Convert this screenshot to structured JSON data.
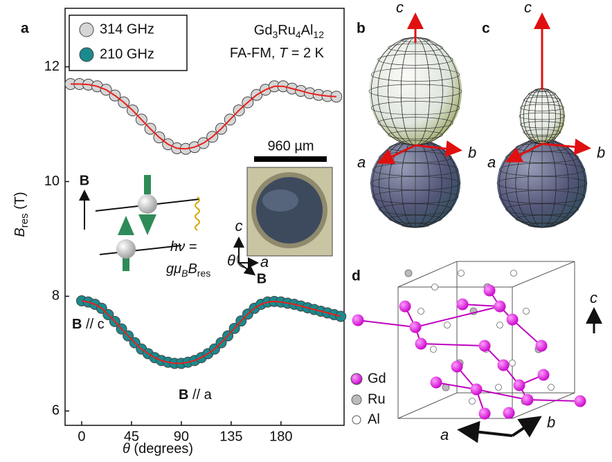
{
  "chart_data": {
    "type": "scatter",
    "panel_label": "a",
    "xlabel": {
      "symbol": "θ",
      "text": "(degrees)"
    },
    "ylabel": {
      "symbol": "B",
      "sub": "res",
      "unit": "(T)"
    },
    "xlim": [
      -15,
      237
    ],
    "ylim": [
      5.75,
      13.02
    ],
    "xticks": [
      0,
      45,
      90,
      135,
      180
    ],
    "yticks": [
      6,
      8,
      10,
      12
    ],
    "fit_color": "#e8201c",
    "legend": "upper left",
    "series": [
      {
        "name": "314 GHz",
        "color": "#d6d6d6",
        "x": [
          -10,
          -2,
          6,
          14,
          22,
          30,
          38,
          46,
          54,
          62,
          70,
          78,
          86,
          94,
          102,
          110,
          118,
          126,
          134,
          142,
          150,
          158,
          166,
          174,
          182,
          190,
          198,
          206,
          214,
          222,
          230
        ],
        "values": [
          11.7,
          11.7,
          11.69,
          11.66,
          11.6,
          11.5,
          11.38,
          11.24,
          11.08,
          10.92,
          10.77,
          10.65,
          10.58,
          10.57,
          10.6,
          10.67,
          10.78,
          10.92,
          11.08,
          11.24,
          11.38,
          11.51,
          11.6,
          11.66,
          11.66,
          11.62,
          11.58,
          11.54,
          11.51,
          11.49,
          11.48
        ]
      },
      {
        "name": "210 GHz",
        "color": "#1a8a8e",
        "x": [
          0,
          6,
          12,
          18,
          24,
          30,
          36,
          42,
          48,
          54,
          60,
          66,
          72,
          78,
          84,
          90,
          96,
          102,
          108,
          114,
          120,
          126,
          132,
          138,
          144,
          150,
          156,
          162,
          168,
          174,
          180,
          186,
          192,
          198,
          204,
          210,
          216,
          222,
          228,
          234
        ],
        "values": [
          7.92,
          7.9,
          7.86,
          7.79,
          7.68,
          7.56,
          7.43,
          7.31,
          7.19,
          7.08,
          7.0,
          6.93,
          6.88,
          6.85,
          6.83,
          6.83,
          6.85,
          6.88,
          6.93,
          7.0,
          7.08,
          7.19,
          7.31,
          7.44,
          7.57,
          7.69,
          7.79,
          7.86,
          7.9,
          7.91,
          7.9,
          7.88,
          7.86,
          7.83,
          7.8,
          7.77,
          7.74,
          7.71,
          7.68,
          7.65
        ]
      }
    ],
    "annotations": {
      "compound": [
        "Gd",
        "3",
        "Ru",
        "4",
        "Al",
        "12"
      ],
      "phase": {
        "prefix": "FA-FM, ",
        "symbol": "T",
        "suffix": " = 2 K"
      },
      "scale_bar": "960 µm",
      "field": "B",
      "resonance": {
        "lhs": "hν =",
        "g": "gμ",
        "mu_sub": "B",
        "b": "B",
        "b_sub": "res"
      },
      "inset_axes": {
        "c": "c",
        "theta": "θ",
        "a": "a",
        "field": "B"
      },
      "orientations": [
        {
          "field": "B",
          "axis": " // c"
        },
        {
          "field": "B",
          "axis": " // a"
        }
      ]
    }
  },
  "panels": {
    "b": {
      "label": "b",
      "axes": {
        "c": "c",
        "a": "a",
        "b": "b"
      }
    },
    "c": {
      "label": "c",
      "axes": {
        "c": "c",
        "a": "a",
        "b": "b"
      }
    },
    "d": {
      "label": "d",
      "legend": [
        "Gd",
        "Ru",
        "Al"
      ],
      "axes": {
        "c": "c",
        "a": "a",
        "b": "b"
      }
    }
  }
}
